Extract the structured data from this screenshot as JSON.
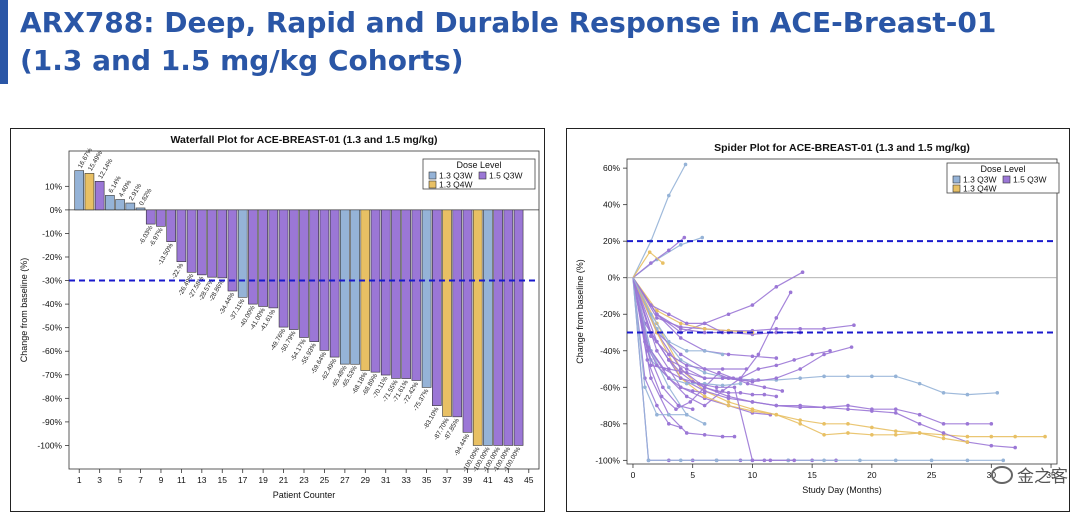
{
  "title_line1": "ARX788: Deep, Rapid and Durable Response in ACE-Breast-01",
  "title_line2": "(1.3 and 1.5 mg/kg Cohorts)",
  "colors": {
    "accent": "#2a56a6",
    "title": "#2a56a6",
    "q3w13": "#95b3d7",
    "q3w15": "#9b77d6",
    "q4w13": "#e8c064",
    "ref": "#1a1acc"
  },
  "watermark": "金之客",
  "chart_data": [
    {
      "type": "bar",
      "title": "Waterfall Plot for ACE-BREAST-01 (1.3 and 1.5 mg/kg)",
      "xlabel": "Patient Counter",
      "ylabel": "Change from baseline (%)",
      "ylim": [
        -110,
        25
      ],
      "yticks": [
        "10%",
        "0%",
        "-10%",
        "-20%",
        "-30%",
        "-40%",
        "-50%",
        "-60%",
        "-70%",
        "-80%",
        "-90%",
        "-100%"
      ],
      "xticks": [
        "1",
        "3",
        "5",
        "7",
        "9",
        "11",
        "13",
        "15",
        "17",
        "19",
        "21",
        "23",
        "25",
        "27",
        "29",
        "31",
        "33",
        "35",
        "37",
        "39",
        "41",
        "43",
        "45"
      ],
      "reference_line": -30,
      "legend": {
        "title": "Dose Level",
        "position": "top-right",
        "entries": [
          {
            "key": "q3w13",
            "label": "1.3 Q3W"
          },
          {
            "key": "q3w15",
            "label": "1.5 Q3W"
          },
          {
            "key": "q4w13",
            "label": "1.3 Q4W"
          }
        ]
      },
      "values": [
        16.67,
        15.49,
        12.14,
        6.14,
        4.4,
        2.91,
        0.82,
        -6.03,
        -6.97,
        -13.5,
        -22.0,
        -26.49,
        -27.58,
        -28.57,
        -28.86,
        -34.44,
        -37.11,
        -40.0,
        -41.0,
        -41.61,
        -49.76,
        -50.79,
        -54.17,
        -55.93,
        -59.64,
        -62.49,
        -65.48,
        -65.53,
        -68.18,
        -68.89,
        -70.11,
        -71.55,
        -71.61,
        -72.42,
        -75.37,
        -83.1,
        -87.7,
        -87.85,
        -94.44,
        -100.0,
        -100.0,
        -100.0,
        -100.0,
        -100.0
      ],
      "labels": [
        "16.67%",
        "15.49%",
        "12.14%",
        "6.14%",
        "4.40%",
        "2.91%",
        "0.82%",
        "-6.03%",
        "-6.97%",
        "-13.50%",
        "-22.%",
        "-26.49%",
        "-27.58%",
        "-28.57%",
        "-28.86%",
        "-34.44%",
        "-37.11%",
        "-40.00%",
        "-41.00%",
        "-41.61%",
        "-49.76%",
        "-50.79%",
        "-54.17%",
        "-55.93%",
        "-59.64%",
        "-62.49%",
        "-65.48%",
        "-65.53%",
        "-68.18%",
        "-68.89%",
        "-70.11%",
        "-71.55%",
        "-71.61%",
        "-72.42%",
        "-75.37%",
        "-83.10%",
        "-87.70%",
        "-87.85%",
        "-94.44%",
        "-100.00%",
        "-100.00%",
        "-100.00%",
        "-100.00%",
        "-100.00%"
      ],
      "groups": [
        "q3w13",
        "q4w13",
        "q3w15",
        "q3w13",
        "q3w13",
        "q3w13",
        "q3w13",
        "q3w15",
        "q3w15",
        "q3w15",
        "q3w15",
        "q3w15",
        "q3w15",
        "q3w15",
        "q3w15",
        "q3w15",
        "q3w13",
        "q3w15",
        "q3w15",
        "q3w15",
        "q3w15",
        "q3w15",
        "q3w15",
        "q3w15",
        "q3w15",
        "q3w15",
        "q3w13",
        "q3w13",
        "q4w13",
        "q3w15",
        "q3w15",
        "q3w15",
        "q3w15",
        "q3w15",
        "q3w13",
        "q3w15",
        "q4w13",
        "q3w15",
        "q3w15",
        "q4w13",
        "q3w13",
        "q3w15",
        "q3w15",
        "q3w15"
      ]
    },
    {
      "type": "line",
      "title": "Spider Plot for ACE-BREAST-01 (1.3 and 1.5 mg/kg)",
      "xlabel": "Study Day (Months)",
      "ylabel": "Change from baseline (%)",
      "xlim": [
        -0.5,
        35.5
      ],
      "ylim": [
        -102,
        65
      ],
      "xticks": [
        0,
        5,
        10,
        15,
        20,
        25,
        30,
        35
      ],
      "yticks": [
        60,
        40,
        20,
        0,
        -20,
        -40,
        -60,
        -80,
        -100
      ],
      "ytick_labels": [
        "60%",
        "40%",
        "20%",
        "0%",
        "-20%",
        "-40%",
        "-60%",
        "-80%",
        "-100%"
      ],
      "reference_lines": [
        20,
        -30
      ],
      "legend": {
        "title": "Dose Level",
        "position": "top-right",
        "entries": [
          {
            "key": "q3w13",
            "label": "1.3 Q3W"
          },
          {
            "key": "q3w15",
            "label": "1.5 Q3W"
          },
          {
            "key": "q4w13",
            "label": "1.3 Q4W"
          }
        ]
      },
      "series": [
        {
          "group": "q3w13",
          "x": [
            0,
            1.5,
            3,
            4.4
          ],
          "y": [
            0,
            20,
            45,
            62
          ]
        },
        {
          "group": "q3w13",
          "x": [
            0,
            2,
            4,
            5.8
          ],
          "y": [
            0,
            10,
            18,
            22
          ]
        },
        {
          "group": "q3w15",
          "x": [
            0,
            1.5,
            3,
            4.3
          ],
          "y": [
            0,
            8,
            15,
            22
          ]
        },
        {
          "group": "q4w13",
          "x": [
            0,
            1.4,
            2.5
          ],
          "y": [
            0,
            14,
            8
          ]
        },
        {
          "group": "q3w15",
          "x": [
            0,
            2,
            4,
            6,
            8,
            10,
            12,
            14.2
          ],
          "y": [
            0,
            -20,
            -30,
            -25,
            -20,
            -15,
            -5,
            3
          ]
        },
        {
          "group": "q3w15",
          "x": [
            0,
            2,
            4,
            6,
            8,
            10,
            12,
            14,
            16,
            18.5
          ],
          "y": [
            0,
            -22,
            -27,
            -28,
            -29,
            -29,
            -28,
            -28,
            -28,
            -26
          ]
        },
        {
          "group": "q4w13",
          "x": [
            0,
            2,
            4,
            6,
            8,
            10,
            12,
            14,
            16,
            18,
            20,
            22,
            24,
            26,
            28,
            30,
            32,
            34.5
          ],
          "y": [
            0,
            -25,
            -50,
            -62,
            -68,
            -72,
            -75,
            -80,
            -86,
            -85,
            -86,
            -86,
            -85,
            -86,
            -87,
            -87,
            -87,
            -87
          ]
        },
        {
          "group": "q3w13",
          "x": [
            0,
            2,
            4,
            6,
            8,
            10,
            12,
            14,
            16,
            18,
            20,
            22,
            24,
            26,
            28,
            30.5
          ],
          "y": [
            0,
            -28,
            -45,
            -52,
            -55,
            -56,
            -56,
            -55,
            -54,
            -54,
            -54,
            -54,
            -58,
            -63,
            -64,
            -63
          ]
        },
        {
          "group": "q3w15",
          "x": [
            0,
            2,
            4,
            6,
            8,
            10,
            12,
            14,
            16,
            18,
            20,
            22,
            24,
            26,
            28,
            30,
            32
          ],
          "y": [
            0,
            -30,
            -50,
            -60,
            -65,
            -68,
            -70,
            -71,
            -71,
            -72,
            -73,
            -74,
            -80,
            -85,
            -90,
            -92,
            -93
          ]
        },
        {
          "group": "q3w15",
          "x": [
            0,
            2,
            4,
            6,
            8,
            10,
            12,
            14,
            16,
            18,
            20,
            22,
            24,
            26,
            28,
            30
          ],
          "y": [
            0,
            -35,
            -55,
            -62,
            -66,
            -68,
            -70,
            -70,
            -71,
            -70,
            -72,
            -72,
            -75,
            -80,
            -80,
            -80
          ]
        },
        {
          "group": "q3w15",
          "x": [
            0,
            2,
            4,
            6,
            8,
            10,
            11.5
          ],
          "y": [
            0,
            -40,
            -60,
            -66,
            -70,
            -74,
            -75
          ]
        },
        {
          "group": "q3w15",
          "x": [
            0,
            2,
            4,
            6,
            8,
            10,
            12,
            14,
            16,
            18.3
          ],
          "y": [
            0,
            -30,
            -42,
            -50,
            -55,
            -57,
            -55,
            -50,
            -42,
            -38
          ]
        },
        {
          "group": "q3w15",
          "x": [
            0,
            1.5,
            3,
            4.5,
            6,
            7.5,
            9,
            10.5,
            12,
            13.2
          ],
          "y": [
            0,
            -40,
            -55,
            -65,
            -70,
            -62,
            -55,
            -42,
            -22,
            -8
          ]
        },
        {
          "group": "q4w13",
          "x": [
            0,
            2,
            4,
            6,
            8,
            10,
            12,
            14,
            16,
            18,
            20,
            22,
            24,
            26,
            28
          ],
          "y": [
            0,
            -30,
            -55,
            -65,
            -70,
            -73,
            -75,
            -78,
            -80,
            -80,
            -82,
            -84,
            -85,
            -88,
            -90
          ]
        },
        {
          "group": "q3w15",
          "x": [
            0,
            1.2,
            2.4,
            3.6,
            4.8,
            6,
            7.2,
            8.4,
            9.6,
            11,
            12.5
          ],
          "y": [
            0,
            -45,
            -65,
            -72,
            -68,
            -60,
            -52,
            -55,
            -58,
            -60,
            -62
          ]
        },
        {
          "group": "q3w15",
          "x": [
            0,
            1,
            2,
            3,
            4,
            5,
            6,
            7,
            8,
            9,
            10,
            11,
            12
          ],
          "y": [
            0,
            -25,
            -35,
            -45,
            -52,
            -57,
            -60,
            -62,
            -63,
            -63,
            -64,
            -64,
            -65
          ]
        },
        {
          "group": "q3w13",
          "x": [
            0,
            1.5,
            3,
            4.5,
            6
          ],
          "y": [
            0,
            -40,
            -60,
            -75,
            -80
          ]
        },
        {
          "group": "q3w15",
          "x": [
            0,
            1.5,
            3,
            4.5,
            6,
            7.5,
            8.5
          ],
          "y": [
            0,
            -55,
            -75,
            -85,
            -86,
            -87,
            -87
          ]
        },
        {
          "group": "q3w15",
          "x": [
            0,
            1.3,
            3,
            5,
            7,
            9,
            11,
            13,
            15,
            17
          ],
          "y": [
            0,
            -100,
            -100,
            -100,
            -100,
            -100,
            -100,
            -100,
            -100,
            -100
          ]
        },
        {
          "group": "q3w13",
          "x": [
            0,
            1.3,
            4,
            7,
            10,
            13,
            16,
            19,
            22,
            25,
            28,
            31
          ],
          "y": [
            0,
            -100,
            -100,
            -100,
            -100,
            -100,
            -100,
            -100,
            -100,
            -100,
            -100,
            -100
          ]
        },
        {
          "group": "q3w15",
          "x": [
            0,
            2,
            4,
            6,
            8,
            10,
            12,
            14
          ],
          "y": [
            0,
            -20,
            -28,
            -30,
            -30,
            -31,
            -30,
            -30
          ]
        },
        {
          "group": "q4w13",
          "x": [
            0,
            2,
            4,
            6,
            8,
            10
          ],
          "y": [
            0,
            -18,
            -25,
            -28,
            -29,
            -30
          ]
        },
        {
          "group": "q3w15",
          "x": [
            0,
            1.5,
            3,
            4.5,
            6,
            7.5
          ],
          "y": [
            0,
            -15,
            -20,
            -25,
            -25,
            -30
          ]
        },
        {
          "group": "q3w15",
          "x": [
            0,
            1.5,
            3,
            4.5,
            6,
            7.5,
            9,
            10.5
          ],
          "y": [
            0,
            -48,
            -50,
            -52,
            -55,
            -55,
            -56,
            -56
          ]
        },
        {
          "group": "q3w13",
          "x": [
            0,
            1.5,
            3,
            4.5,
            6,
            7.5,
            9
          ],
          "y": [
            0,
            -45,
            -55,
            -58,
            -58,
            -59,
            -58
          ]
        },
        {
          "group": "q3w15",
          "x": [
            0,
            1,
            2,
            3,
            4
          ],
          "y": [
            0,
            -55,
            -70,
            -80,
            -82
          ]
        },
        {
          "group": "q3w13",
          "x": [
            0,
            1,
            2,
            3,
            4.5
          ],
          "y": [
            0,
            -60,
            -75,
            -75,
            -75
          ]
        },
        {
          "group": "q3w15",
          "x": [
            0,
            1.2,
            2.5,
            3.8,
            5
          ],
          "y": [
            0,
            -40,
            -60,
            -70,
            -72
          ]
        },
        {
          "group": "q3w15",
          "x": [
            0,
            1.5,
            3,
            4.5,
            6,
            7.5,
            9.5
          ],
          "y": [
            0,
            -32,
            -42,
            -48,
            -50,
            -50,
            -50
          ]
        },
        {
          "group": "q3w15",
          "x": [
            0,
            1,
            2,
            3,
            4,
            5,
            6
          ],
          "y": [
            0,
            -35,
            -48,
            -55,
            -60,
            -62,
            -63
          ]
        },
        {
          "group": "q3w15",
          "x": [
            0,
            2,
            4,
            6,
            8,
            10,
            12
          ],
          "y": [
            0,
            -20,
            -33,
            -40,
            -42,
            -43,
            -44
          ]
        },
        {
          "group": "q3w15",
          "x": [
            0,
            1.3,
            2.6,
            4,
            5.5,
            7,
            8.5,
            10,
            11.5,
            13.5
          ],
          "y": [
            0,
            -38,
            -50,
            -55,
            -58,
            -60,
            -60,
            -100,
            -100,
            -100
          ]
        },
        {
          "group": "q3w15",
          "x": [
            0,
            1.5,
            3,
            4.5,
            6,
            7.5,
            9,
            10.5,
            12,
            13.5,
            15,
            16.5
          ],
          "y": [
            0,
            -30,
            -45,
            -50,
            -55,
            -55,
            -55,
            -50,
            -48,
            -45,
            -42,
            -40
          ]
        },
        {
          "group": "q3w13",
          "x": [
            0,
            1.5,
            3,
            4.5,
            6,
            7.5
          ],
          "y": [
            0,
            -20,
            -35,
            -40,
            -40,
            -42
          ]
        }
      ]
    }
  ]
}
